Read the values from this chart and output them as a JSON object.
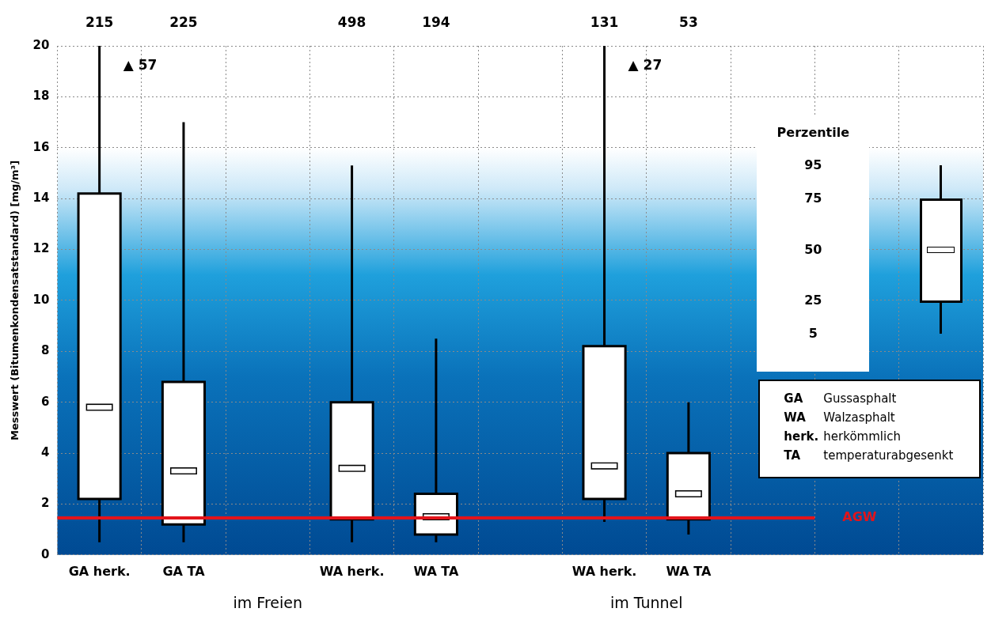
{
  "chart_data": {
    "type": "box",
    "ylabel": "Messwert (Bitumenkondensatstandard) [mg/m³]",
    "categories": [
      "GA herk.",
      "GA TA",
      null,
      "WA herk.",
      "WA TA",
      null,
      "WA herk.",
      "WA TA",
      null,
      null,
      null
    ],
    "boxes": [
      {
        "low": 0.5,
        "q1": 2.2,
        "median": 5.8,
        "q3": 14.2,
        "high": 20
      },
      {
        "low": 0.5,
        "q1": 1.2,
        "median": 3.3,
        "q3": 6.8,
        "high": 17
      },
      null,
      {
        "low": 0.5,
        "q1": 1.4,
        "median": 3.4,
        "q3": 6.0,
        "high": 15.3
      },
      {
        "low": 0.5,
        "q1": 0.8,
        "median": 1.5,
        "q3": 2.4,
        "high": 8.5
      },
      null,
      {
        "low": 1.3,
        "q1": 2.2,
        "median": 3.5,
        "q3": 8.2,
        "high": 20
      },
      {
        "low": 0.8,
        "q1": 1.4,
        "median": 2.4,
        "q3": 4.0,
        "high": 6.0
      },
      null,
      null,
      null
    ],
    "ylim": [
      0,
      20
    ],
    "yticks": [
      0,
      2,
      4,
      6,
      8,
      10,
      12,
      14,
      16,
      18,
      20
    ],
    "grid": true,
    "ref_lines": [
      {
        "axis": "y",
        "value": 1.45,
        "label": "AGW",
        "color": "#e3141b"
      }
    ],
    "annotations": [
      "215",
      "225",
      "498",
      "194",
      "131",
      "53",
      "▲ 57",
      "▲ 27",
      "im Freien",
      "im Tunnel",
      "Perzentile",
      "95",
      "75",
      "50",
      "25",
      "5",
      "GA",
      "Gussasphalt",
      "WA",
      "Walzasphalt",
      "herk.",
      "herkömmlich",
      "TA",
      "temperaturabgesenkt"
    ]
  }
}
